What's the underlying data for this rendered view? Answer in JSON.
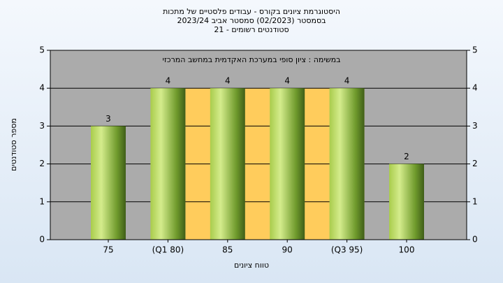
{
  "chart_data": {
    "type": "bar",
    "title": "היסטוגרמת ציונים בקורס - עבודים פלסטיים של מתכות",
    "subtitle": "בסמסטר  (02/2023)  סמסטר אביב 2023/24",
    "subtitle2": "סטודנטים רשומים - 21",
    "annotation": "במשימה : ציון סופי במערכת האקדמית במחשב המרכזי",
    "x_label": "טווח ציונים",
    "y_label": "מספר סטודנטים",
    "categories": [
      "75",
      "(Q1 80)",
      "85",
      "90",
      "(Q3 95)",
      "100"
    ],
    "values": [
      3,
      4,
      4,
      4,
      4,
      2
    ],
    "color": "#8fb33a",
    "ylim": [
      0,
      5
    ],
    "yticks": [
      0,
      1,
      2,
      3,
      4,
      5
    ],
    "y2lim": [
      0,
      5
    ],
    "y2ticks": [
      0,
      1,
      2,
      3,
      4,
      5
    ],
    "grid": true
  }
}
